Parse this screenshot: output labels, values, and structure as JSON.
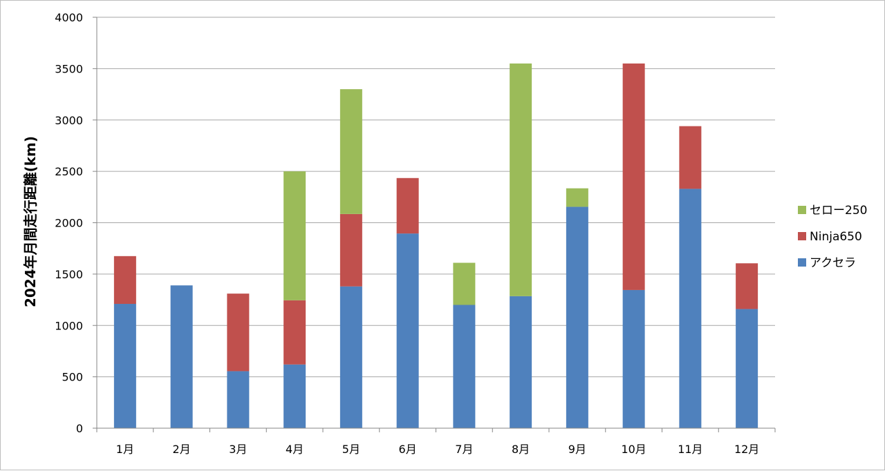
{
  "chart_data": {
    "type": "bar",
    "stacked": true,
    "ylabel": "2024年月間走行距離(km)",
    "xlabel": "",
    "title": "",
    "ylim": [
      0,
      4000
    ],
    "yticks": [
      0,
      500,
      1000,
      1500,
      2000,
      2500,
      3000,
      3500,
      4000
    ],
    "grid": true,
    "legend_position": "right",
    "categories": [
      "1月",
      "2月",
      "3月",
      "4月",
      "5月",
      "6月",
      "7月",
      "8月",
      "9月",
      "10月",
      "11月",
      "12月"
    ],
    "series": [
      {
        "name": "アクセラ",
        "color": "#4f81bd",
        "values": [
          1210,
          1390,
          555,
          620,
          1380,
          1895,
          1200,
          1285,
          2155,
          1345,
          2330,
          1160
        ]
      },
      {
        "name": "Ninja650",
        "color": "#c0504d",
        "values": [
          465,
          0,
          755,
          625,
          705,
          540,
          0,
          0,
          0,
          2205,
          610,
          445
        ]
      },
      {
        "name": "セロー250",
        "color": "#9bbb59",
        "values": [
          0,
          0,
          0,
          1255,
          1215,
          0,
          410,
          2265,
          180,
          0,
          0,
          0
        ]
      }
    ]
  }
}
